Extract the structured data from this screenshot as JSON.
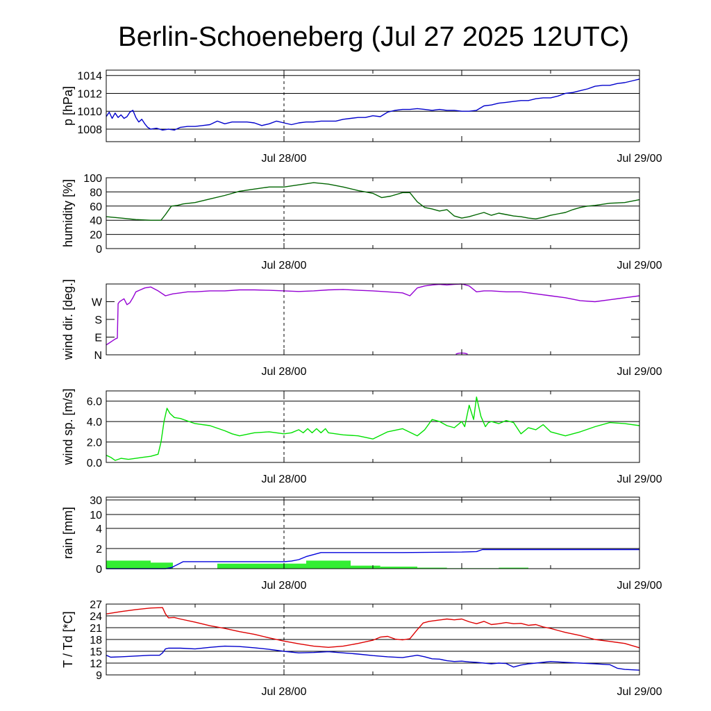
{
  "title": "Berlin-Schoeneberg (Jul 27 2025 12UTC)",
  "colors": {
    "pressure": "#0000cc",
    "humidity": "#006400",
    "wind_dir": "#9400d3",
    "wind_speed": "#00e000",
    "rain_total": "#0000dd",
    "rain_bar": "#33ee33",
    "temperature": "#dd0000",
    "dewpoint": "#0000cc"
  },
  "chart_data": [
    {
      "type": "line",
      "ylabel": "p [hPa]",
      "x_range": [
        0,
        36
      ],
      "ylim": [
        1006.6,
        1014.6
      ],
      "yticks": [
        1008,
        1010,
        1012,
        1014
      ],
      "ytick_labels": [
        "1008",
        "1010",
        "1012",
        "1014"
      ],
      "xtick_labels": [
        {
          "x": 12,
          "label": "Jul 28/00"
        },
        {
          "x": 36,
          "label": "Jul 29/00"
        }
      ],
      "series": [
        {
          "color_key": "pressure",
          "x": [
            0,
            0.2,
            0.4,
            0.6,
            0.8,
            1.0,
            1.2,
            1.4,
            1.6,
            1.8,
            2.0,
            2.2,
            2.4,
            2.6,
            2.8,
            3.0,
            3.4,
            3.8,
            4.2,
            4.6,
            5.0,
            5.5,
            6.0,
            6.5,
            7.0,
            7.5,
            8.0,
            8.5,
            9.0,
            9.5,
            10.0,
            10.5,
            11.0,
            11.5,
            12.0,
            12.5,
            13.0,
            13.5,
            14.0,
            14.5,
            15.0,
            15.5,
            16.0,
            16.5,
            17.0,
            17.5,
            18.0,
            18.5,
            19.0,
            19.5,
            20.0,
            20.5,
            21.0,
            21.5,
            22.0,
            22.5,
            23.0,
            23.5,
            24.0,
            24.5,
            25.0,
            25.5,
            26.0,
            26.5,
            27.0,
            27.5,
            28.0,
            28.5,
            29.0,
            29.5,
            30.0,
            30.5,
            31.0,
            31.5,
            32.0,
            32.5,
            33.0,
            33.5,
            34.0,
            34.5,
            35.0,
            35.5,
            36.0
          ],
          "y": [
            1009.4,
            1009.9,
            1009.2,
            1009.8,
            1009.3,
            1009.6,
            1009.2,
            1009.4,
            1009.9,
            1010.1,
            1009.3,
            1008.8,
            1009.1,
            1008.6,
            1008.2,
            1008.0,
            1008.1,
            1007.9,
            1008.0,
            1007.9,
            1008.2,
            1008.3,
            1008.3,
            1008.4,
            1008.5,
            1008.9,
            1008.6,
            1008.8,
            1008.8,
            1008.8,
            1008.7,
            1008.4,
            1008.6,
            1008.9,
            1008.7,
            1008.5,
            1008.7,
            1008.8,
            1008.8,
            1008.9,
            1008.9,
            1008.9,
            1009.1,
            1009.2,
            1009.3,
            1009.3,
            1009.5,
            1009.4,
            1009.9,
            1010.1,
            1010.2,
            1010.2,
            1010.3,
            1010.2,
            1010.1,
            1010.2,
            1010.1,
            1010.1,
            1010.0,
            1010.0,
            1010.1,
            1010.6,
            1010.7,
            1010.9,
            1011.0,
            1011.1,
            1011.2,
            1011.2,
            1011.4,
            1011.5,
            1011.5,
            1011.7,
            1012.0,
            1012.1,
            1012.3,
            1012.5,
            1012.8,
            1012.9,
            1012.9,
            1013.1,
            1013.2,
            1013.4,
            1013.6
          ]
        }
      ]
    },
    {
      "type": "line",
      "ylabel": "humidity [%]",
      "x_range": [
        0,
        36
      ],
      "ylim": [
        0,
        100
      ],
      "yticks": [
        0,
        20,
        40,
        60,
        80,
        100
      ],
      "ytick_labels": [
        "0",
        "20",
        "40",
        "60",
        "80",
        "100"
      ],
      "xtick_labels": [
        {
          "x": 12,
          "label": "Jul 28/00"
        },
        {
          "x": 36,
          "label": "Jul 29/00"
        }
      ],
      "series": [
        {
          "color_key": "humidity",
          "x": [
            0,
            1,
            2,
            3,
            3.7,
            4.0,
            4.4,
            4.8,
            5.2,
            6,
            7,
            8,
            9,
            10,
            11,
            12,
            13,
            14,
            15,
            16,
            17,
            18,
            18.6,
            19.2,
            20,
            20.5,
            21,
            21.5,
            22,
            22.5,
            23,
            23.5,
            24,
            24.5,
            25,
            25.5,
            26,
            26.5,
            27,
            27.5,
            28,
            28.5,
            29,
            29.5,
            30,
            30.5,
            31,
            31.5,
            32,
            32.5,
            33,
            34,
            35,
            36
          ],
          "y": [
            45,
            43,
            41,
            40,
            40,
            48,
            60,
            61,
            63,
            65,
            70,
            75,
            81,
            84,
            87,
            87,
            90,
            93,
            91,
            87,
            82,
            78,
            72,
            74,
            79,
            79,
            66,
            58,
            56,
            53,
            55,
            46,
            43,
            45,
            48,
            51,
            47,
            50,
            48,
            46,
            45,
            43,
            42,
            44,
            47,
            49,
            51,
            55,
            58,
            60,
            61,
            64,
            65,
            69
          ]
        }
      ]
    },
    {
      "type": "scatter",
      "ylabel": "wind dir. [deg.]",
      "x_range": [
        0,
        36
      ],
      "ylim": [
        0,
        360
      ],
      "yticks": [
        0,
        90,
        180,
        270
      ],
      "ytick_labels": [
        "N",
        "E",
        "S",
        "W"
      ],
      "xtick_labels": [
        {
          "x": 12,
          "label": "Jul 28/00"
        },
        {
          "x": 36,
          "label": "Jul 29/00"
        }
      ],
      "series": [
        {
          "color_key": "wind_dir",
          "x": [
            0,
            0.2,
            0.4,
            0.6,
            0.75,
            0.8,
            0.9,
            1.0,
            1.2,
            1.4,
            1.6,
            1.8,
            2.0,
            2.3,
            2.6,
            3.0,
            3.5,
            4.0,
            4.5,
            5,
            5.5,
            6,
            7,
            8,
            9,
            10,
            11,
            12,
            13,
            14,
            15,
            16,
            17,
            18,
            19,
            20,
            20.5,
            21,
            21.5,
            22,
            22.5,
            23,
            23.5,
            24,
            24.5,
            25,
            25.5,
            26,
            27,
            28,
            29,
            30,
            31,
            32,
            33,
            34,
            35,
            36
          ],
          "y": [
            50,
            60,
            70,
            80,
            85,
            260,
            270,
            275,
            285,
            255,
            265,
            290,
            320,
            330,
            340,
            345,
            325,
            300,
            310,
            315,
            320,
            320,
            325,
            325,
            330,
            330,
            328,
            325,
            322,
            325,
            330,
            332,
            328,
            325,
            320,
            315,
            300,
            340,
            350,
            355,
            358,
            355,
            358,
            360,
            350,
            320,
            325,
            325,
            320,
            320,
            310,
            300,
            290,
            275,
            270,
            280,
            290,
            300
          ]
        },
        {
          "color_key": "wind_dir",
          "x": [
            23.6,
            23.8,
            24.0,
            24.2,
            24.4
          ],
          "y": [
            4,
            8,
            9,
            8,
            4
          ]
        }
      ]
    },
    {
      "type": "line",
      "ylabel": "wind sp. [m/s]",
      "x_range": [
        0,
        36
      ],
      "ylim": [
        0,
        7
      ],
      "yticks": [
        0,
        2,
        4,
        6
      ],
      "ytick_labels": [
        "0.0",
        "2.0",
        "4.0",
        "6.0"
      ],
      "xtick_labels": [
        {
          "x": 12,
          "label": "Jul 28/00"
        },
        {
          "x": 36,
          "label": "Jul 29/00"
        }
      ],
      "series": [
        {
          "color_key": "wind_speed",
          "x": [
            0,
            0.3,
            0.6,
            1,
            1.5,
            2,
            2.5,
            3,
            3.5,
            3.7,
            3.9,
            4.1,
            4.3,
            4.6,
            5,
            6,
            7,
            8,
            8.5,
            9,
            10,
            11,
            12,
            12.5,
            13,
            13.3,
            13.6,
            13.9,
            14.2,
            14.5,
            14.8,
            15,
            16,
            17,
            18,
            19,
            20,
            21,
            21.5,
            22,
            22.5,
            23,
            23.5,
            24,
            24.2,
            24.5,
            24.8,
            25,
            25.3,
            25.6,
            25.8,
            26,
            26.5,
            27,
            27.5,
            28,
            28.5,
            29,
            29.5,
            30,
            31,
            32,
            33,
            34,
            35,
            36
          ],
          "y": [
            0.7,
            0.5,
            0.2,
            0.4,
            0.3,
            0.4,
            0.5,
            0.6,
            0.8,
            2.0,
            4.0,
            5.3,
            4.8,
            4.4,
            4.3,
            3.8,
            3.6,
            3.1,
            2.8,
            2.6,
            2.9,
            3.0,
            2.8,
            2.9,
            3.2,
            2.9,
            3.3,
            2.9,
            3.3,
            2.9,
            3.3,
            2.9,
            2.7,
            2.6,
            2.3,
            3.0,
            3.3,
            2.6,
            3.2,
            4.2,
            4.0,
            3.6,
            3.4,
            4.0,
            3.5,
            5.6,
            4.2,
            6.4,
            4.5,
            3.5,
            3.9,
            4.0,
            3.8,
            4.1,
            3.9,
            2.8,
            3.4,
            3.2,
            3.7,
            3.0,
            2.6,
            3.0,
            3.5,
            3.9,
            3.8,
            3.6
          ]
        }
      ]
    },
    {
      "type": "bar",
      "ylabel": "rain [mm]",
      "x_range": [
        0,
        36
      ],
      "yticks": [
        0,
        2,
        4,
        10,
        30
      ],
      "ytick_labels": [
        "0",
        "2",
        "4",
        "10",
        "30"
      ],
      "xtick_labels": [
        {
          "x": 12,
          "label": "Jul 28/00"
        },
        {
          "x": 36,
          "label": "Jul 29/00"
        }
      ],
      "bars": {
        "color_key": "rain_bar",
        "x_start": [
          0,
          3,
          7.5,
          13.5,
          16.5,
          18.5,
          21,
          23,
          25.5,
          26.5
        ],
        "x_end": [
          3,
          4.5,
          13.5,
          16.5,
          18.5,
          21,
          23,
          25.5,
          26.5,
          28.5
        ],
        "values": [
          0.8,
          0.6,
          0.5,
          0.8,
          0.3,
          0.2,
          0.1,
          0.05,
          0.05,
          0.1
        ]
      },
      "series": [
        {
          "color_key": "rain_total",
          "x": [
            0,
            4,
            4.4,
            4.8,
            5.2,
            12,
            12.5,
            13,
            13.5,
            14,
            14.5,
            15,
            20,
            24,
            25,
            25.4,
            26,
            36
          ],
          "y": [
            0,
            0,
            0.1,
            0.4,
            0.7,
            0.7,
            0.75,
            0.9,
            1.2,
            1.4,
            1.6,
            1.6,
            1.6,
            1.65,
            1.7,
            1.9,
            1.9,
            1.9
          ]
        }
      ]
    },
    {
      "type": "line",
      "ylabel": "T / Td [*C]",
      "x_range": [
        0,
        36
      ],
      "ylim": [
        9,
        27
      ],
      "yticks": [
        9,
        12,
        15,
        18,
        21,
        24,
        27
      ],
      "ytick_labels": [
        "9",
        "12",
        "15",
        "18",
        "21",
        "24",
        "27"
      ],
      "xtick_labels": [
        {
          "x": 12,
          "label": "Jul 28/00"
        },
        {
          "x": 36,
          "label": "Jul 29/00"
        }
      ],
      "series": [
        {
          "color_key": "temperature",
          "x": [
            0,
            1,
            2,
            3,
            3.8,
            4.0,
            4.2,
            4.6,
            5,
            6,
            7,
            8,
            9,
            10,
            11,
            12,
            13,
            14,
            15,
            16,
            17,
            18,
            18.5,
            19,
            19.5,
            20,
            20.5,
            21,
            21.4,
            21.8,
            22.4,
            23,
            23.5,
            24,
            24.5,
            25,
            25.5,
            26,
            26.5,
            27,
            27.5,
            28,
            28.5,
            29,
            29.5,
            30,
            30.5,
            31,
            32,
            33,
            34,
            35,
            36
          ],
          "y": [
            24.5,
            25.1,
            25.6,
            26.0,
            26.1,
            24.5,
            23.5,
            23.6,
            23.2,
            22.4,
            21.5,
            20.8,
            20.0,
            19.3,
            18.4,
            17.6,
            16.9,
            16.3,
            16.0,
            16.3,
            17.0,
            17.8,
            18.6,
            18.8,
            18.1,
            17.9,
            18.2,
            20.5,
            22.2,
            22.6,
            22.9,
            23.2,
            23.0,
            23.2,
            22.5,
            22.0,
            22.6,
            21.8,
            22.0,
            22.3,
            22.0,
            22.1,
            21.6,
            21.8,
            21.2,
            20.8,
            20.3,
            19.8,
            19.0,
            18.0,
            17.5,
            17.0,
            15.9
          ]
        },
        {
          "color_key": "dewpoint",
          "x": [
            0,
            0.3,
            1,
            2,
            3,
            3.6,
            3.8,
            4.0,
            4.2,
            5,
            6,
            7,
            8,
            9,
            10,
            11,
            12,
            13,
            14,
            15,
            16,
            17,
            18,
            19,
            20,
            21,
            21.5,
            22,
            22.5,
            23,
            23.5,
            24,
            24.5,
            25,
            25.5,
            26,
            26.5,
            27,
            27.5,
            28,
            28.5,
            29,
            30,
            31,
            32,
            33,
            34,
            34.5,
            35,
            36
          ],
          "y": [
            14.0,
            13.5,
            13.6,
            13.8,
            14.0,
            14.0,
            14.6,
            15.6,
            15.8,
            15.8,
            15.6,
            16.0,
            16.3,
            16.2,
            15.9,
            15.5,
            15.0,
            14.6,
            14.7,
            14.9,
            14.6,
            14.3,
            13.9,
            13.6,
            13.4,
            14.0,
            13.6,
            13.1,
            13.0,
            12.6,
            12.4,
            12.5,
            12.3,
            12.2,
            12.0,
            11.8,
            12.0,
            11.9,
            11.0,
            11.5,
            11.8,
            12.0,
            12.4,
            12.2,
            12.0,
            11.8,
            11.6,
            10.7,
            10.4,
            10.2
          ]
        }
      ]
    }
  ]
}
